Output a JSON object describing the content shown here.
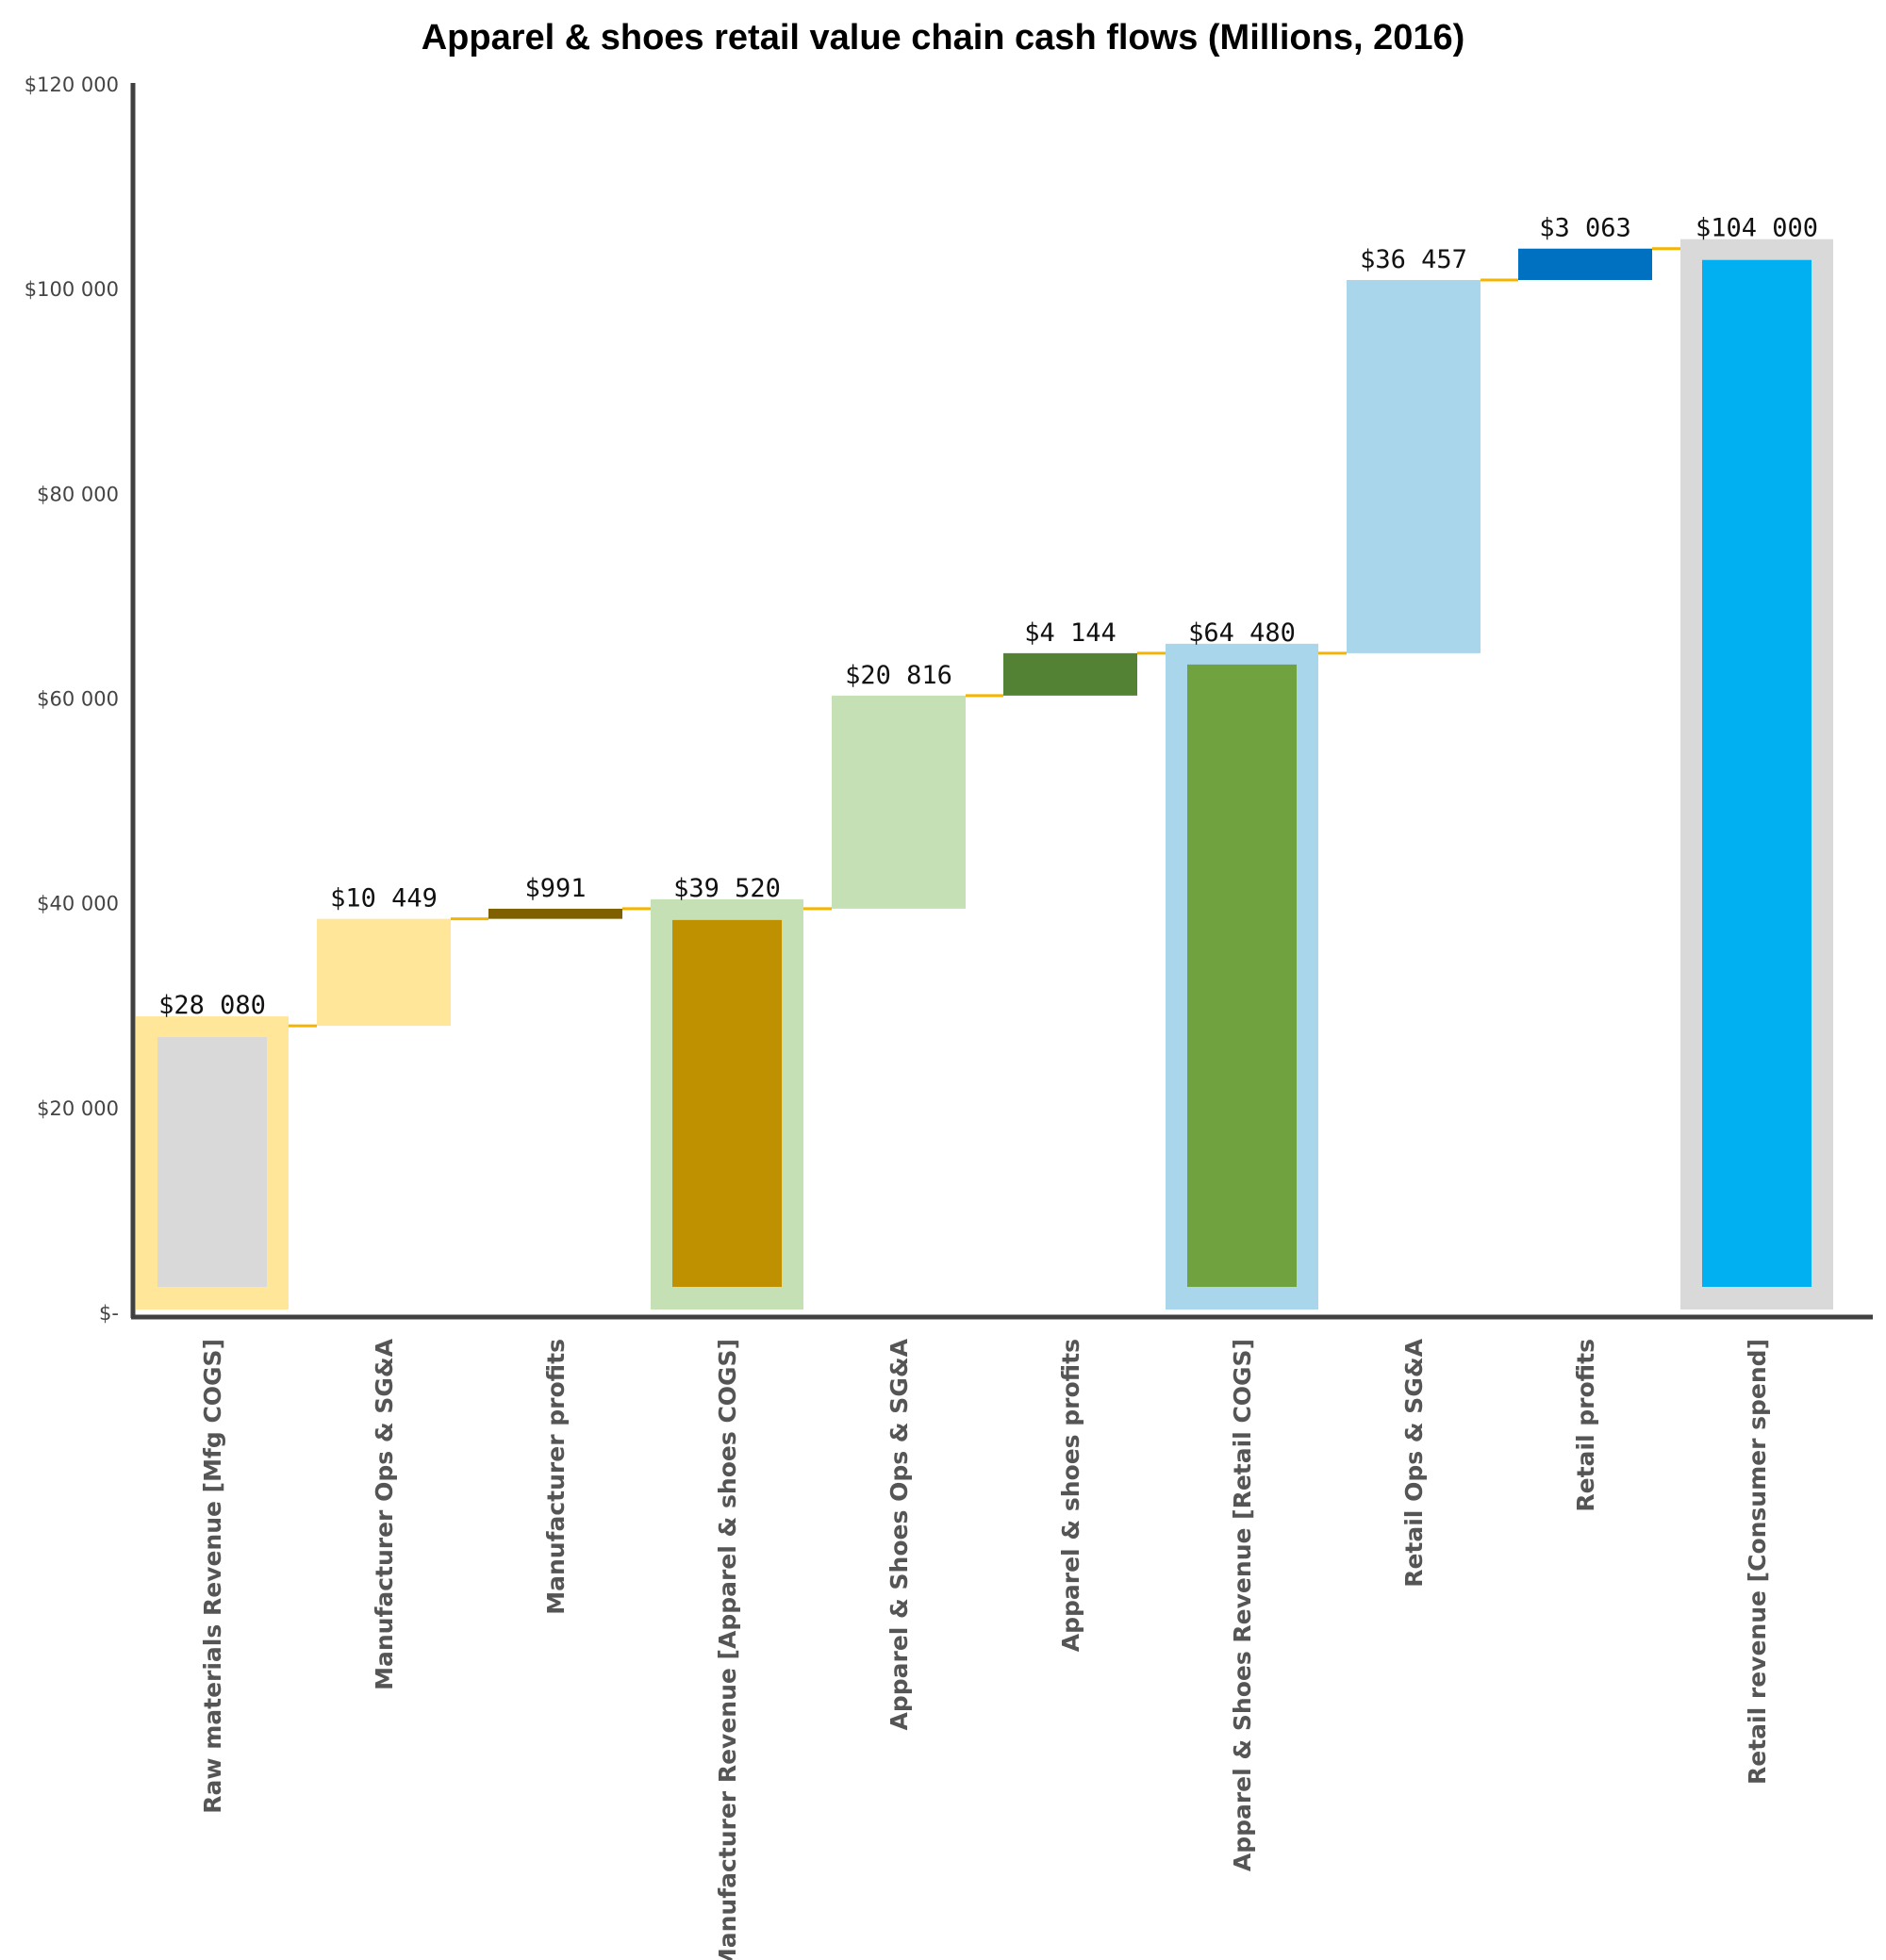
{
  "chart_data": {
    "type": "waterfall",
    "title": "Apparel & shoes retail value chain cash flows (Millions, 2016)",
    "ylim": [
      0,
      120000
    ],
    "y_ticks": [
      0,
      20000,
      40000,
      60000,
      80000,
      100000,
      120000
    ],
    "y_tick_labels": [
      "$-",
      "$20 000",
      "$40 000",
      "$60 000",
      "$80 000",
      "$100 000",
      "$120 000"
    ],
    "grid": false,
    "legend": "none",
    "connector_color": "#F4B400",
    "categories": [
      {
        "name": "Raw materials Revenue [Mfg COGS]",
        "kind": "total",
        "start": 0,
        "value": 28080,
        "label": "$28 080",
        "fill": "#D9D9D9",
        "border": "#FFE699"
      },
      {
        "name": "Manufacturer Ops & SG&A",
        "kind": "delta",
        "start": 28080,
        "value": 10449,
        "label": "$10 449",
        "fill": "#FFE699"
      },
      {
        "name": "Manufacturer profits",
        "kind": "delta",
        "start": 38529,
        "value": 991,
        "label": "$991",
        "fill": "#7F6000"
      },
      {
        "name": "Manufacturer Revenue [Apparel & shoes COGS]",
        "kind": "total",
        "start": 0,
        "value": 39520,
        "label": "$39 520",
        "fill": "#BF9000",
        "border": "#C5E0B4"
      },
      {
        "name": "Apparel & Shoes Ops & SG&A",
        "kind": "delta",
        "start": 39520,
        "value": 20816,
        "label": "$20 816",
        "fill": "#C5E0B4"
      },
      {
        "name": "Apparel & shoes profits",
        "kind": "delta",
        "start": 60336,
        "value": 4144,
        "label": "$4 144",
        "fill": "#548235"
      },
      {
        "name": "Apparel & Shoes Revenue [Retail COGS]",
        "kind": "total",
        "start": 0,
        "value": 64480,
        "label": "$64 480",
        "fill": "#70A23F",
        "border": "#A9D6EB"
      },
      {
        "name": "Retail Ops & SG&A",
        "kind": "delta",
        "start": 64480,
        "value": 36457,
        "label": "$36 457",
        "fill": "#A9D6EB"
      },
      {
        "name": "Retail profits",
        "kind": "delta",
        "start": 100937,
        "value": 3063,
        "label": "$3 063",
        "fill": "#0070C0"
      },
      {
        "name": "Retail revenue [Consumer spend]",
        "kind": "total",
        "start": 0,
        "value": 104000,
        "label": "$104 000",
        "fill": "#00B0F0",
        "border": "#D9D9D9"
      }
    ]
  }
}
